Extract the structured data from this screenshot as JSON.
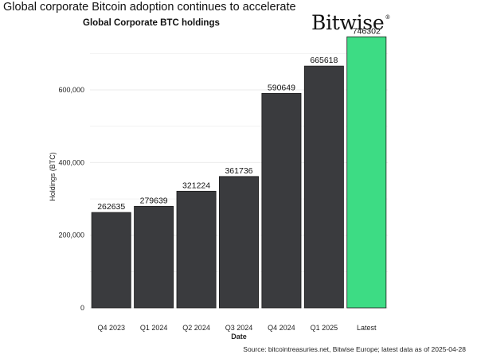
{
  "header": {
    "headline": "Global corporate Bitcoin adoption continues to accelerate",
    "brand": "Bitwise",
    "brand_mark": "®"
  },
  "footer": {
    "source": "Source: bitcointreasuries.net, Bitwise Europe; latest data as of 2025-04-28"
  },
  "colors": {
    "bar_default": "#3a3b3e",
    "bar_highlight": "#3ddc84",
    "grid": "#ebebeb"
  },
  "chart_data": {
    "type": "bar",
    "title": "Global Corporate BTC holdings",
    "xlabel": "Date",
    "ylabel": "Holdings (BTC)",
    "categories": [
      "Q4 2023",
      "Q1 2024",
      "Q2 2024",
      "Q3 2024",
      "Q4 2024",
      "Q1 2025",
      "Latest"
    ],
    "values": [
      262635,
      279639,
      321224,
      361736,
      590649,
      665618,
      746302
    ],
    "data_labels": [
      "262635",
      "279639",
      "321224",
      "361736",
      "590649",
      "665618",
      "746302"
    ],
    "highlight_category": "Latest",
    "ylim": [
      0,
      760000
    ],
    "yticks": [
      0,
      200000,
      400000,
      600000
    ],
    "ytick_labels": [
      "0",
      "200,000",
      "400,000",
      "600,000"
    ],
    "grid": true,
    "legend": "none"
  }
}
